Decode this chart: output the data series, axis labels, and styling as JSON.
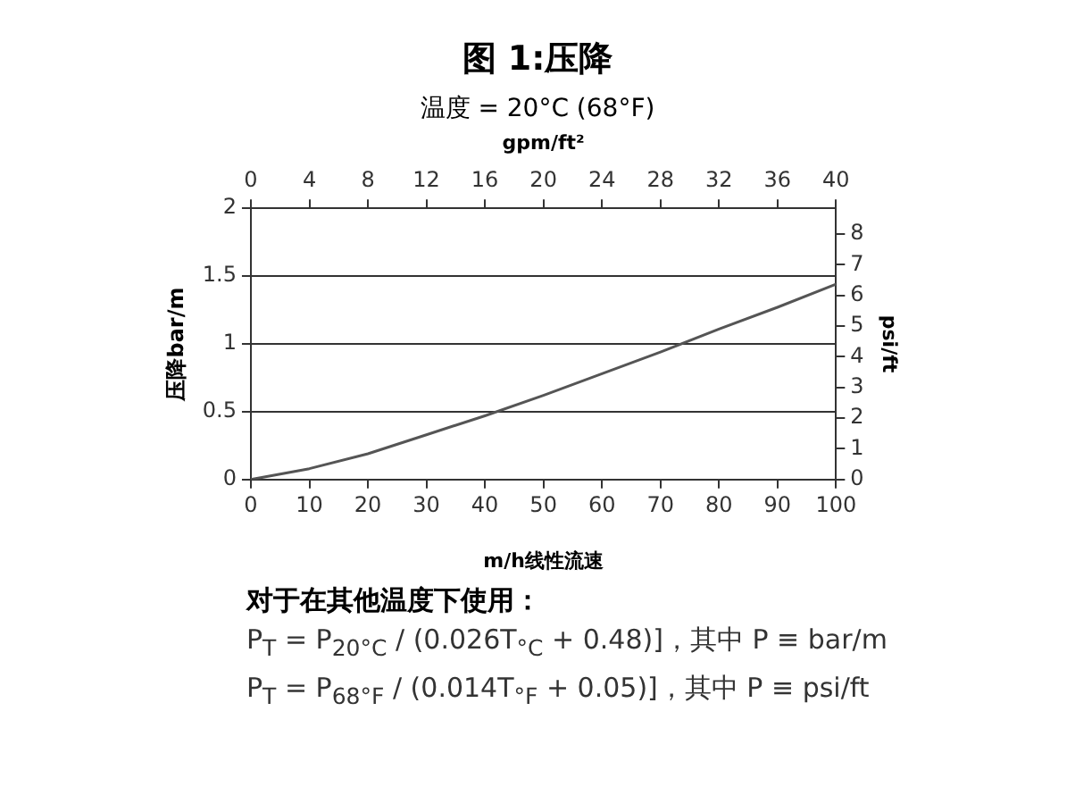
{
  "chart_data": {
    "type": "line",
    "title": "图 1:压降",
    "subtitle": "温度 = 20°C (68°F)",
    "xlabel": "m/h线性流速",
    "ylabel": "压降bar/m",
    "y2label": "psi/ft",
    "x2label": "gpm/ft²",
    "x": [
      0,
      10,
      20,
      30,
      40,
      50,
      60,
      70,
      80,
      90,
      100
    ],
    "series": [
      {
        "color": "#555555",
        "values": [
          0,
          0.08,
          0.19,
          0.33,
          0.47,
          0.62,
          0.78,
          0.94,
          1.11,
          1.27,
          1.44
        ]
      }
    ],
    "xlim": [
      0,
      100
    ],
    "xticks": [
      0,
      10,
      20,
      30,
      40,
      50,
      60,
      70,
      80,
      90,
      100
    ],
    "x2lim": [
      0,
      40
    ],
    "x2ticks": [
      0,
      4,
      8,
      12,
      16,
      20,
      24,
      28,
      32,
      36,
      40
    ],
    "ylim": [
      0,
      2
    ],
    "yticks": [
      0,
      0.5,
      1,
      1.5,
      2
    ],
    "y2lim": [
      0,
      8.84
    ],
    "y2ticks": [
      0,
      1,
      2,
      3,
      4,
      5,
      6,
      7,
      8
    ],
    "grid": "y",
    "marker": "none",
    "line_style": "solid",
    "annotations": [
      "对于在其他温度下使用：",
      "P$_{T}$ = P$_{20°C}$ / (0.026T$_{°C}$ + 0.48)]，其中 P ≡ bar/m",
      "P$_{T}$ = P$_{68°F}$ / (0.014T$_{°F}$ + 0.05)]，其中 P ≡ psi/ft"
    ]
  }
}
